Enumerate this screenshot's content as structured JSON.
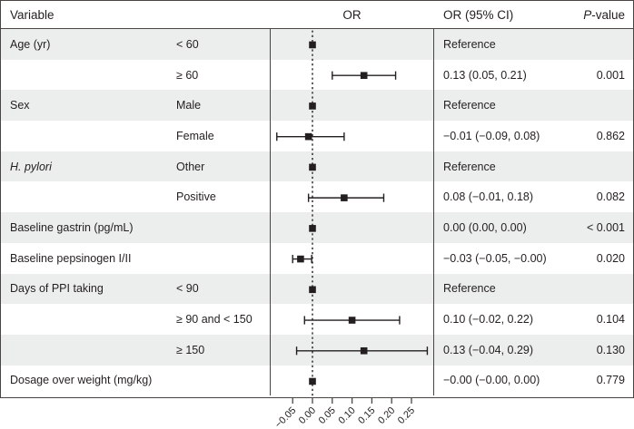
{
  "header": {
    "variable": "Variable",
    "or": "OR",
    "or_ci": "OR (95% CI)",
    "p_italic": "P",
    "p_rest": "-value"
  },
  "rows": [
    {
      "variable": "Age (yr)",
      "italic": false,
      "level": "< 60",
      "or_ci": "Reference",
      "p": "",
      "shaded": true
    },
    {
      "variable": "",
      "italic": false,
      "level": "≥ 60",
      "or_ci": "0.13 (0.05, 0.21)",
      "p": "0.001",
      "shaded": false
    },
    {
      "variable": "Sex",
      "italic": false,
      "level": "Male",
      "or_ci": "Reference",
      "p": "",
      "shaded": true
    },
    {
      "variable": "",
      "italic": false,
      "level": "Female",
      "or_ci": "−0.01 (−0.09, 0.08)",
      "p": "0.862",
      "shaded": false
    },
    {
      "variable": "H. pylori",
      "italic": true,
      "level": "Other",
      "or_ci": "Reference",
      "p": "",
      "shaded": true
    },
    {
      "variable": "",
      "italic": false,
      "level": "Positive",
      "or_ci": "0.08 (−0.01, 0.18)",
      "p": "0.082",
      "shaded": false
    },
    {
      "variable": "Baseline gastrin (pg/mL)",
      "italic": false,
      "level": "",
      "or_ci": "0.00 (0.00, 0.00)",
      "p": "< 0.001",
      "shaded": true
    },
    {
      "variable": "Baseline pepsinogen I/II",
      "italic": false,
      "level": "",
      "or_ci": "−0.03 (−0.05, −0.00)",
      "p": "0.020",
      "shaded": false
    },
    {
      "variable": "Days of PPI taking",
      "italic": false,
      "level": "< 90",
      "or_ci": "Reference",
      "p": "",
      "shaded": true
    },
    {
      "variable": "",
      "italic": false,
      "level": "≥ 90 and < 150",
      "or_ci": "0.10 (−0.02, 0.22)",
      "p": "0.104",
      "shaded": false
    },
    {
      "variable": "",
      "italic": false,
      "level": "≥ 150",
      "or_ci": "0.13 (−0.04, 0.29)",
      "p": "0.130",
      "shaded": true
    },
    {
      "variable": "Dosage over weight (mg/kg)",
      "italic": false,
      "level": "",
      "or_ci": "−0.00 (−0.00, 0.00)",
      "p": "0.779",
      "shaded": false
    }
  ],
  "chart_data": {
    "type": "forest",
    "title": "",
    "xlabel": "OR",
    "xlim": [
      -0.112,
      0.306
    ],
    "x_ticks": [
      -0.05,
      0.0,
      0.05,
      0.1,
      0.15,
      0.2,
      0.25
    ],
    "x_tick_labels": [
      "−0.05",
      "0.00",
      "0.05",
      "0.10",
      "0.15",
      "0.20",
      "0.25"
    ],
    "zero_line": 0.0,
    "points": [
      {
        "label": "Age (yr) < 60",
        "or": 0.0,
        "lo": 0.0,
        "hi": 0.0,
        "reference": true
      },
      {
        "label": "Age (yr) ≥ 60",
        "or": 0.13,
        "lo": 0.05,
        "hi": 0.21,
        "reference": false
      },
      {
        "label": "Sex Male",
        "or": 0.0,
        "lo": 0.0,
        "hi": 0.0,
        "reference": true
      },
      {
        "label": "Sex Female",
        "or": -0.01,
        "lo": -0.09,
        "hi": 0.08,
        "reference": false
      },
      {
        "label": "H. pylori Other",
        "or": 0.0,
        "lo": 0.0,
        "hi": 0.0,
        "reference": true
      },
      {
        "label": "H. pylori Positive",
        "or": 0.08,
        "lo": -0.01,
        "hi": 0.18,
        "reference": false
      },
      {
        "label": "Baseline gastrin (pg/mL)",
        "or": 0.0,
        "lo": 0.0,
        "hi": 0.0,
        "reference": false
      },
      {
        "label": "Baseline pepsinogen I/II",
        "or": -0.03,
        "lo": -0.05,
        "hi": -0.002,
        "reference": false
      },
      {
        "label": "Days of PPI taking < 90",
        "or": 0.0,
        "lo": 0.0,
        "hi": 0.0,
        "reference": true
      },
      {
        "label": "Days of PPI taking ≥ 90 and < 150",
        "or": 0.1,
        "lo": -0.02,
        "hi": 0.22,
        "reference": false
      },
      {
        "label": "Days of PPI taking ≥ 150",
        "or": 0.13,
        "lo": -0.04,
        "hi": 0.29,
        "reference": false
      },
      {
        "label": "Dosage over weight (mg/kg)",
        "or": 0.0,
        "lo": 0.0,
        "hi": 0.0,
        "reference": false
      }
    ]
  },
  "colors": {
    "row_shade": "#eceded",
    "border": "#4a4543",
    "text": "#231f20",
    "marker": "#231f20"
  }
}
